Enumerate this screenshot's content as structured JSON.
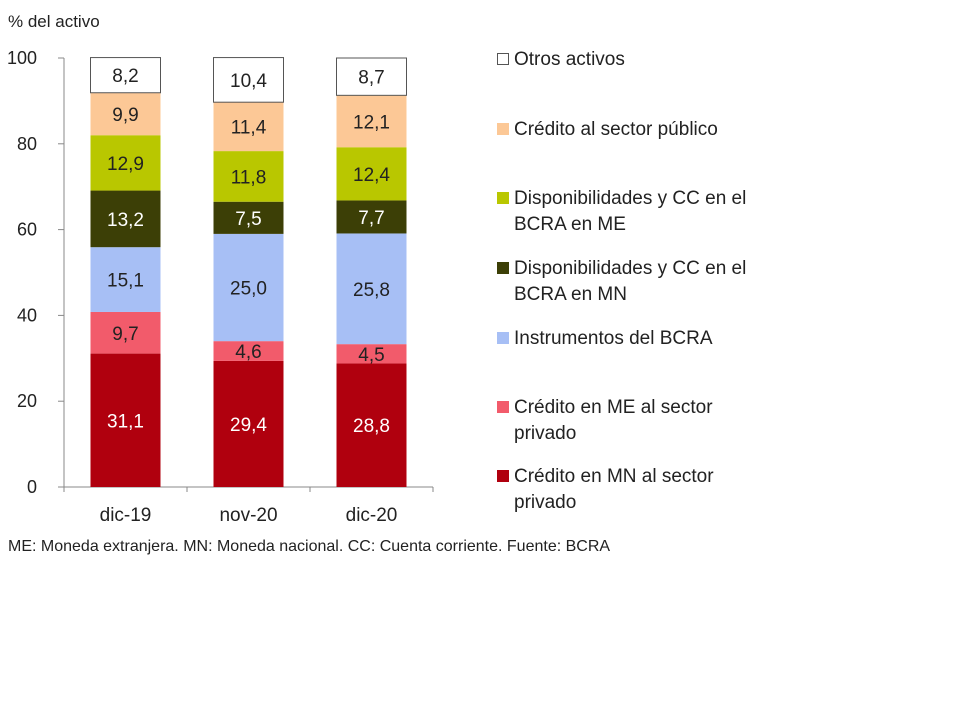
{
  "chart_data": {
    "type": "bar",
    "stacked": true,
    "unit_label": "% del activo",
    "categories": [
      "dic-19",
      "nov-20",
      "dic-20"
    ],
    "ylim": [
      0,
      100
    ],
    "yticks": [
      0,
      20,
      40,
      60,
      80,
      100
    ],
    "grid": false,
    "legend_position": "right",
    "series": [
      {
        "name": "Crédito en MN al sector privado",
        "values": [
          31.1,
          29.4,
          28.8
        ],
        "labels": [
          "31,1",
          "29,4",
          "28,8"
        ],
        "color": "#b0000e",
        "label_color": "#ffffff"
      },
      {
        "name": "Crédito en ME al sector privado",
        "values": [
          9.7,
          4.6,
          4.5
        ],
        "labels": [
          "9,7",
          "4,6",
          "4,5"
        ],
        "color": "#f25b6b",
        "label_color": "#222222"
      },
      {
        "name": "Instrumentos del BCRA",
        "values": [
          15.1,
          25.0,
          25.8
        ],
        "labels": [
          "15,1",
          "25,0",
          "25,8"
        ],
        "color": "#a7bff5",
        "label_color": "#222222"
      },
      {
        "name": "Disponibilidades y CC en el BCRA en MN",
        "values": [
          13.2,
          7.5,
          7.7
        ],
        "labels": [
          "13,2",
          "7,5",
          "7,7"
        ],
        "color": "#3c3f06",
        "label_color": "#ffffff"
      },
      {
        "name": "Disponibilidades y CC en el BCRA en ME",
        "values": [
          12.9,
          11.8,
          12.4
        ],
        "labels": [
          "12,9",
          "11,8",
          "12,4"
        ],
        "color": "#b9c700",
        "label_color": "#222222"
      },
      {
        "name": "Crédito al sector público",
        "values": [
          9.9,
          11.4,
          12.1
        ],
        "labels": [
          "9,9",
          "11,4",
          "12,1"
        ],
        "color": "#fcc896",
        "label_color": "#222222"
      },
      {
        "name": "Otros activos",
        "values": [
          8.2,
          10.4,
          8.7
        ],
        "labels": [
          "8,2",
          "10,4",
          "8,7"
        ],
        "color": "#ffffff",
        "label_color": "#222222",
        "outlined": true
      }
    ]
  },
  "legend": {
    "items": [
      {
        "line1": "Otros activos",
        "color": "#ffffff",
        "outlined": true
      },
      {
        "line1": "Crédito al sector público",
        "color": "#fcc896"
      },
      {
        "line1": "Disponibilidades y CC en el",
        "line2": "BCRA en ME",
        "color": "#b9c700"
      },
      {
        "line1": "Disponibilidades y CC en el",
        "line2": "BCRA en MN",
        "color": "#3c3f06"
      },
      {
        "line1": "Instrumentos del BCRA",
        "color": "#a7bff5"
      },
      {
        "line1": "Crédito en ME al sector",
        "line2": "privado",
        "color": "#f25b6b"
      },
      {
        "line1": "Crédito en MN al sector",
        "line2": "privado",
        "color": "#b0000e"
      }
    ]
  },
  "footnote": "ME: Moneda extranjera. MN: Moneda nacional. CC: Cuenta corriente. Fuente: BCRA"
}
